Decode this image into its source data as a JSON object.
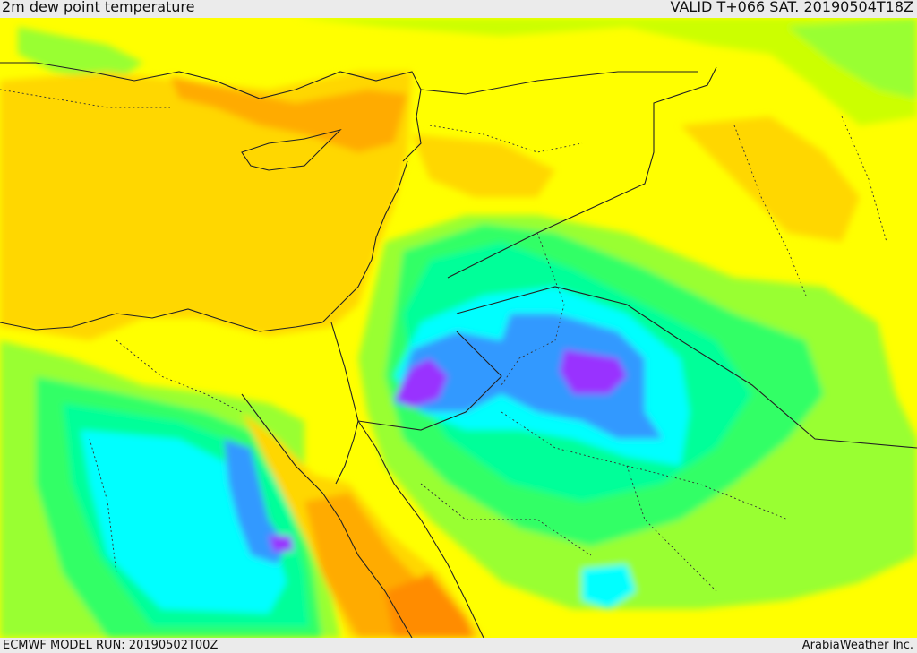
{
  "header": {
    "title": "2m dew point temperature",
    "valid": "VALID T+066 SAT. 20190504T18Z"
  },
  "footer": {
    "model_run": "ECMWF MODEL RUN: 20190502T00Z",
    "credit": "ArabiaWeather Inc."
  },
  "palette": {
    "orange": "#ff8c00",
    "dark_amber": "#ffab00",
    "amber": "#ffd700",
    "yellow": "#ffff00",
    "yellow_green": "#ccff00",
    "green": "#99ff33",
    "lime": "#33ff66",
    "spring_green": "#00ff99",
    "cyan": "#00ffff",
    "azure": "#3399ff",
    "blue": "#3366ff",
    "violet": "#9933ff"
  }
}
